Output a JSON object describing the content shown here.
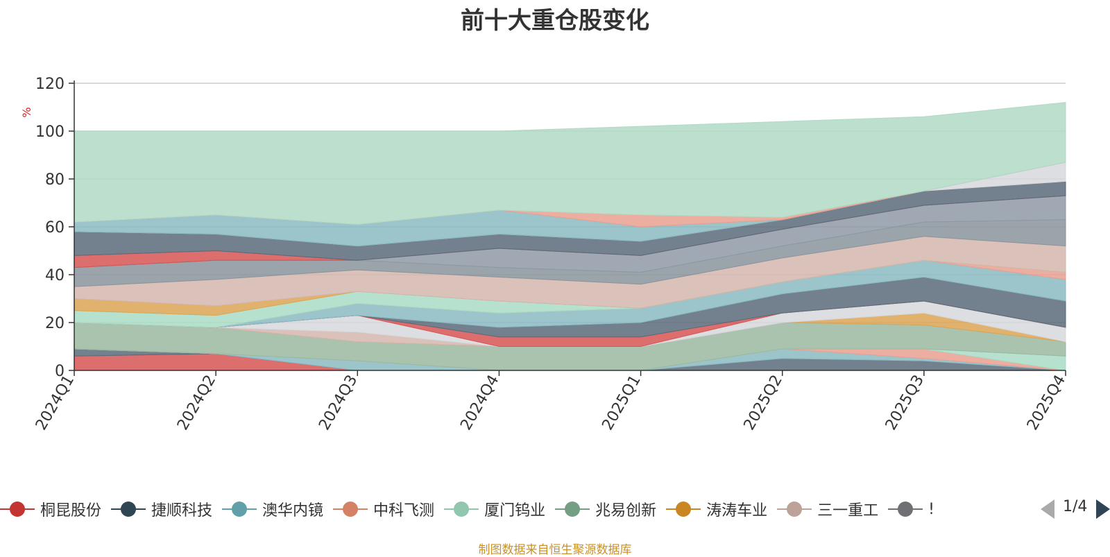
{
  "chart_data": {
    "type": "area",
    "title": "前十大重仓股变化",
    "ylabel": "%",
    "ylim": [
      0,
      120
    ],
    "yticks": [
      0,
      20,
      40,
      60,
      80,
      100,
      120
    ],
    "grid": true,
    "legend_position": "bottom",
    "x": [
      "2024Q1",
      "2024Q2",
      "2024Q3",
      "2024Q4",
      "2025Q1",
      "2025Q2",
      "2025Q3",
      "2025Q4"
    ],
    "series": [
      {
        "name": "桐昆股份",
        "color": "#d65555",
        "values": [
          6,
          7,
          0,
          0,
          0,
          0,
          0,
          0
        ]
      },
      {
        "name": "捷顺科技",
        "color": "#5a6b7a",
        "values": [
          3,
          0,
          0,
          0,
          0,
          5,
          4,
          0
        ]
      },
      {
        "name": "澳华内镜",
        "color": "#8bbac2",
        "values": [
          0,
          0,
          4,
          0,
          0,
          4,
          1,
          0
        ]
      },
      {
        "name": "中科飞测",
        "color": "#e8a090",
        "values": [
          0,
          0,
          0,
          0,
          0,
          0,
          4,
          0
        ]
      },
      {
        "name": "厦门钨业",
        "color": "#a8dcc6",
        "values": [
          0,
          0,
          0,
          0,
          0,
          0,
          0,
          6
        ]
      },
      {
        "name": "兆易创新",
        "color": "#9ab8a0",
        "values": [
          11,
          11,
          8,
          10,
          10,
          11,
          10,
          6
        ]
      },
      {
        "name": "涛涛车业",
        "color": "#dca553",
        "values": [
          0,
          0,
          0,
          0,
          0,
          0,
          5,
          0
        ]
      },
      {
        "name": "三一重工",
        "color": "#d4b6ae",
        "values": [
          0,
          0,
          4,
          0,
          0,
          0,
          0,
          0
        ]
      },
      {
        "name": "",
        "color": "#d6d8dc",
        "values": [
          0,
          0,
          7,
          0,
          0,
          4,
          5,
          6
        ]
      },
      {
        "name": "",
        "color": "#d65555",
        "values": [
          0,
          0,
          0,
          4,
          4,
          0,
          0,
          0
        ]
      },
      {
        "name": "",
        "color": "#5a6b7a",
        "values": [
          0,
          0,
          0,
          4,
          6,
          8,
          10,
          11
        ]
      },
      {
        "name": "",
        "color": "#8bbac2",
        "values": [
          0,
          0,
          5,
          6,
          6,
          5,
          7,
          9
        ]
      },
      {
        "name": "",
        "color": "#e8a090",
        "values": [
          0,
          0,
          0,
          0,
          0,
          0,
          0,
          3
        ]
      },
      {
        "name": "",
        "color": "#a8dcc6",
        "values": [
          5,
          5,
          5,
          5,
          0,
          0,
          0,
          0
        ]
      },
      {
        "name": "",
        "color": "#dca553",
        "values": [
          5,
          4,
          0,
          0,
          0,
          0,
          0,
          0
        ]
      },
      {
        "name": "",
        "color": "#d4b6ae",
        "values": [
          5,
          11,
          9,
          10,
          10,
          10,
          10,
          11
        ]
      },
      {
        "name": "",
        "color": "#8a949c",
        "values": [
          8,
          8,
          4,
          4,
          5,
          5,
          6,
          11
        ]
      },
      {
        "name": "",
        "color": "#8e99a6",
        "values": [
          0,
          0,
          0,
          8,
          7,
          7,
          7,
          10
        ]
      },
      {
        "name": "",
        "color": "#d65555",
        "values": [
          5,
          4,
          0,
          0,
          0,
          0,
          0,
          0
        ]
      },
      {
        "name": "",
        "color": "#5a6b7a",
        "values": [
          10,
          7,
          6,
          6,
          6,
          4,
          6,
          6
        ]
      },
      {
        "name": "",
        "color": "#d6d8dc",
        "values": [
          0,
          0,
          0,
          0,
          0,
          0,
          0,
          8
        ]
      },
      {
        "name": "",
        "color": "#8bbac2",
        "values": [
          4,
          8,
          9,
          10,
          6,
          0,
          0,
          0
        ]
      },
      {
        "name": "",
        "color": "#e8a090",
        "values": [
          0,
          0,
          0,
          0,
          5,
          1,
          0,
          0
        ]
      },
      {
        "name": "",
        "color": "#b2d9c6",
        "values": [
          38,
          35,
          39,
          33,
          37,
          40,
          31,
          25
        ]
      }
    ]
  },
  "legend": {
    "items": [
      {
        "label": "桐昆股份",
        "color": "#c23531"
      },
      {
        "label": "捷顺科技",
        "color": "#2f4554"
      },
      {
        "label": "澳华内镜",
        "color": "#61a0a8"
      },
      {
        "label": "中科飞测",
        "color": "#d48265"
      },
      {
        "label": "厦门钨业",
        "color": "#91c7ae"
      },
      {
        "label": "兆易创新",
        "color": "#749f83"
      },
      {
        "label": "涛涛车业",
        "color": "#ca8622"
      },
      {
        "label": "三一重工",
        "color": "#bda29a"
      },
      {
        "label": "!",
        "color": "#6e7074"
      }
    ],
    "page": "1/4"
  },
  "footer": "制图数据来自恒生聚源数据库"
}
